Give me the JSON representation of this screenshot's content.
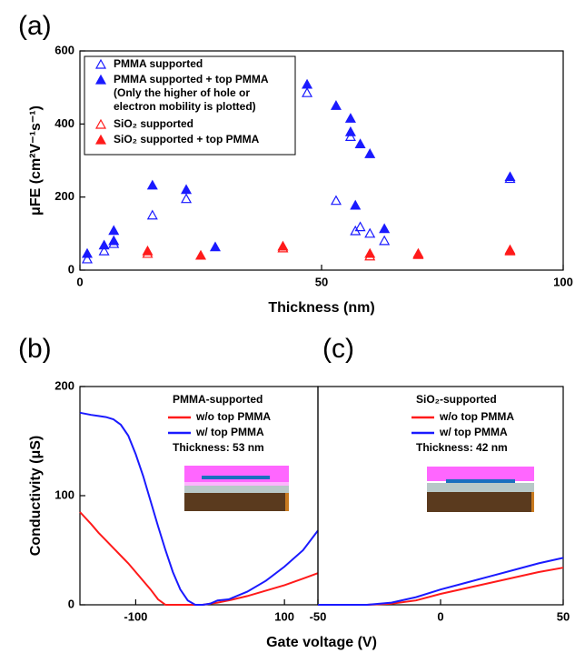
{
  "chart_data": [
    {
      "type": "scatter",
      "label": "(a)",
      "xlabel": "Thickness (nm)",
      "ylabel": "μFE (cm²V⁻¹s⁻¹)",
      "xlim": [
        0,
        100
      ],
      "xticks": [
        0,
        50,
        100
      ],
      "ylim": [
        0,
        600
      ],
      "yticks": [
        0,
        200,
        400,
        600
      ],
      "legend_note": [
        "(Only the higher of hole or",
        "electron mobility is plotted)"
      ],
      "series": [
        {
          "name": "PMMA supported",
          "color": "#1a1aff",
          "marker": "open",
          "x": [
            1.5,
            5,
            7,
            15,
            22,
            47,
            53,
            56,
            57,
            58,
            60,
            63,
            89
          ],
          "values": [
            30,
            52,
            72,
            150,
            195,
            485,
            190,
            365,
            107,
            118,
            100,
            80,
            250
          ]
        },
        {
          "name": "PMMA supported + top PMMA",
          "color": "#1a1aff",
          "marker": "filled",
          "x": [
            1.5,
            5,
            7,
            7,
            15,
            22,
            28,
            47,
            53,
            56,
            56,
            57,
            58,
            60,
            63,
            89
          ],
          "values": [
            45,
            68,
            108,
            80,
            232,
            220,
            63,
            508,
            450,
            415,
            378,
            177,
            345,
            318,
            113,
            255
          ]
        },
        {
          "name": "SiO₂ supported",
          "color": "#ff1a1a",
          "marker": "open",
          "x": [
            14,
            42,
            60,
            70,
            89
          ],
          "values": [
            45,
            60,
            38,
            42,
            52
          ]
        },
        {
          "name": "SiO₂ supported + top PMMA",
          "color": "#ff1a1a",
          "marker": "filled",
          "x": [
            14,
            25,
            42,
            60,
            70,
            89
          ],
          "values": [
            52,
            40,
            65,
            45,
            45,
            55
          ]
        }
      ]
    },
    {
      "type": "line",
      "label": "(b)",
      "xlabel": "Gate voltage (V)",
      "ylabel": "Conductivity (μS)",
      "legend_title": "PMMA-supported",
      "annotation": "Thickness: 53 nm",
      "xlim": [
        -175,
        145
      ],
      "xticks": [
        -100,
        100
      ],
      "ylim": [
        0,
        200
      ],
      "yticks": [
        0,
        100,
        200
      ],
      "x": [
        -175,
        -160,
        -150,
        -140,
        -130,
        -120,
        -110,
        -100,
        -90,
        -80,
        -70,
        -60,
        -50,
        -40,
        -30,
        -20,
        -10,
        0,
        10,
        25,
        50,
        75,
        100,
        125,
        145
      ],
      "series": [
        {
          "name": "w/o top PMMA",
          "color": "#ff1a1a",
          "values": [
            85,
            74,
            66,
            59,
            52,
            45,
            38,
            30,
            22,
            14,
            5,
            0,
            0,
            0,
            0,
            0,
            0,
            1,
            2,
            4,
            8,
            13,
            18,
            24,
            29
          ]
        },
        {
          "name": "w/ top PMMA",
          "color": "#1a1aff",
          "values": [
            176,
            174,
            173,
            172,
            170,
            165,
            155,
            138,
            118,
            95,
            72,
            50,
            30,
            14,
            4,
            0,
            0,
            1,
            4,
            5,
            12,
            22,
            35,
            50,
            68
          ]
        }
      ]
    },
    {
      "type": "line",
      "label": "(c)",
      "legend_title": "SiO₂-supported",
      "annotation": "Thickness: 42 nm",
      "xlim": [
        -50,
        50
      ],
      "xticks": [
        -50,
        0,
        50
      ],
      "ylim": [
        0,
        200
      ],
      "x": [
        -50,
        -40,
        -30,
        -20,
        -10,
        0,
        10,
        20,
        30,
        40,
        50
      ],
      "series": [
        {
          "name": "w/o top PMMA",
          "color": "#ff1a1a",
          "values": [
            0,
            0,
            0,
            1,
            4,
            10,
            15,
            20,
            25,
            30,
            34
          ]
        },
        {
          "name": "w/ top PMMA",
          "color": "#1a1aff",
          "values": [
            0,
            0,
            0,
            2,
            7,
            14,
            20,
            26,
            32,
            38,
            43
          ]
        }
      ]
    }
  ]
}
